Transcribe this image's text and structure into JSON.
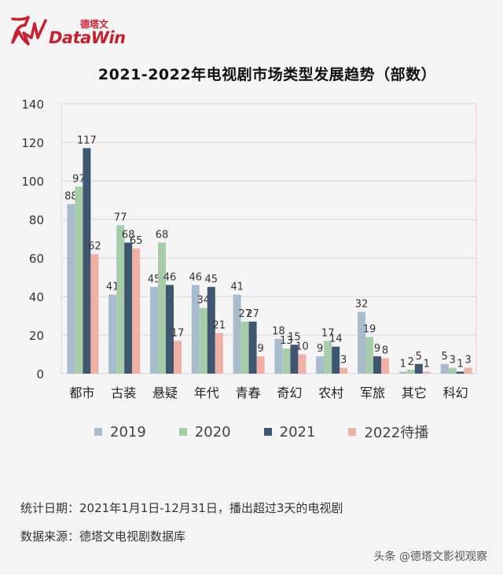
{
  "brand": {
    "name": "DataWin",
    "cn": "德塔文",
    "color": "#c8202d"
  },
  "chart_data": {
    "type": "bar",
    "title": "2021-2022年电视剧市场类型发展趋势（部数）",
    "categories": [
      "都市",
      "古装",
      "悬疑",
      "年代",
      "青春",
      "奇幻",
      "农村",
      "军旅",
      "其它",
      "科幻"
    ],
    "series": [
      {
        "name": "2019",
        "color": "#a9bccd",
        "values": [
          88,
          41,
          45,
          46,
          41,
          18,
          9,
          32,
          1,
          5
        ]
      },
      {
        "name": "2020",
        "color": "#a7ccaa",
        "values": [
          97,
          77,
          68,
          34,
          27,
          13,
          17,
          19,
          2,
          3
        ]
      },
      {
        "name": "2021",
        "color": "#3e5670",
        "values": [
          117,
          68,
          46,
          45,
          27,
          15,
          14,
          9,
          5,
          1
        ]
      },
      {
        "name": "2022待播",
        "color": "#efb0a5",
        "values": [
          62,
          65,
          17,
          21,
          9,
          10,
          3,
          8,
          1,
          3
        ]
      }
    ],
    "ylim": [
      0,
      140
    ],
    "yticks": [
      0,
      20,
      40,
      60,
      80,
      100,
      120,
      140
    ],
    "legend_position": "bottom",
    "grid": true
  },
  "footer": {
    "line1": "统计日期：2021年1月1日-12月31日，播出超过3天的电视剧",
    "line2": "数据来源：德塔文电视剧数据库"
  },
  "watermark": "头条 @德塔文影视观察"
}
